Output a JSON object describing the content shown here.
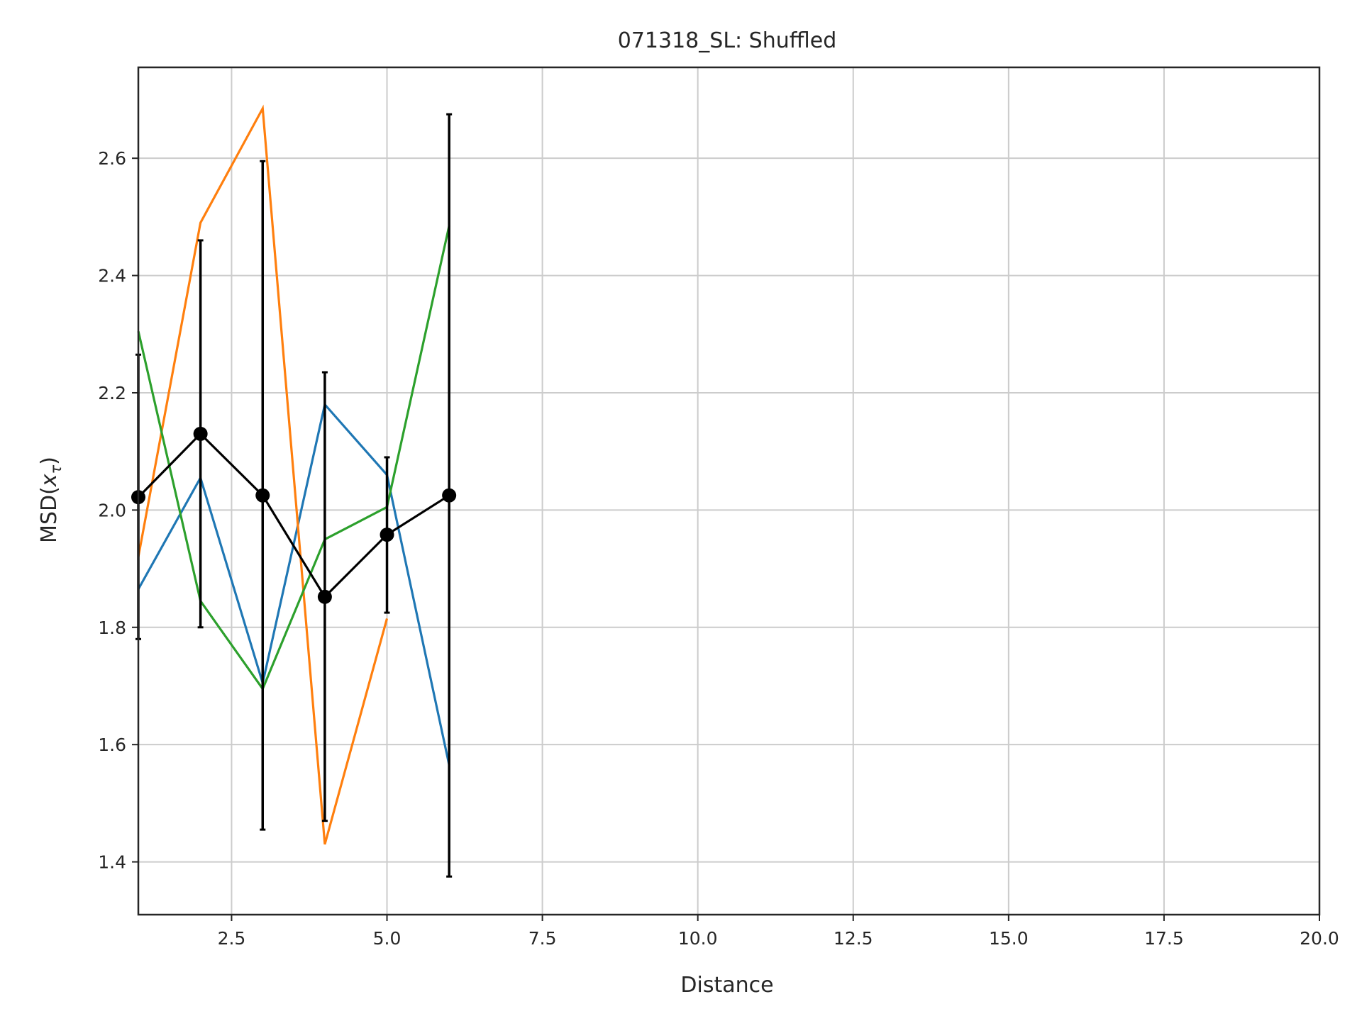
{
  "chart_data": {
    "type": "line",
    "title": "071318_SL: Shuffled",
    "xlabel": "Distance",
    "ylabel": "MSD(xτ)",
    "ylabel_parts": {
      "base": "MSD(",
      "var": "x",
      "sub": "τ",
      "close": ")"
    },
    "xlim": [
      1,
      20
    ],
    "ylim": [
      1.31,
      2.755
    ],
    "xticks": [
      2.5,
      5.0,
      7.5,
      10.0,
      12.5,
      15.0,
      17.5,
      20.0
    ],
    "xtick_labels": [
      "2.5",
      "5.0",
      "7.5",
      "10.0",
      "12.5",
      "15.0",
      "17.5",
      "20.0"
    ],
    "yticks": [
      1.4,
      1.6,
      1.8,
      2.0,
      2.2,
      2.4,
      2.6
    ],
    "ytick_labels": [
      "1.4",
      "1.6",
      "1.8",
      "2.0",
      "2.2",
      "2.4",
      "2.6"
    ],
    "grid": true,
    "series": [
      {
        "color": "#1f77b4",
        "x": [
          1,
          2,
          3,
          4,
          5,
          6
        ],
        "y": [
          1.865,
          2.055,
          1.705,
          2.18,
          2.06,
          1.565
        ]
      },
      {
        "color": "#ff7f0e",
        "x": [
          1,
          2,
          3,
          4,
          5
        ],
        "y": [
          1.92,
          2.49,
          2.685,
          1.43,
          1.815
        ]
      },
      {
        "color": "#2ca02c",
        "x": [
          1,
          2,
          3,
          4,
          5,
          6
        ],
        "y": [
          2.305,
          1.845,
          1.695,
          1.95,
          2.005,
          2.485
        ]
      }
    ],
    "mean": {
      "color": "#000000",
      "x": [
        1,
        2,
        3,
        4,
        5,
        6
      ],
      "y": [
        2.022,
        2.13,
        2.025,
        1.852,
        1.958,
        2.025
      ],
      "err_low": [
        1.78,
        1.8,
        1.455,
        1.47,
        1.825,
        1.375
      ],
      "err_high": [
        2.265,
        2.46,
        2.595,
        2.235,
        2.09,
        2.675
      ]
    }
  }
}
